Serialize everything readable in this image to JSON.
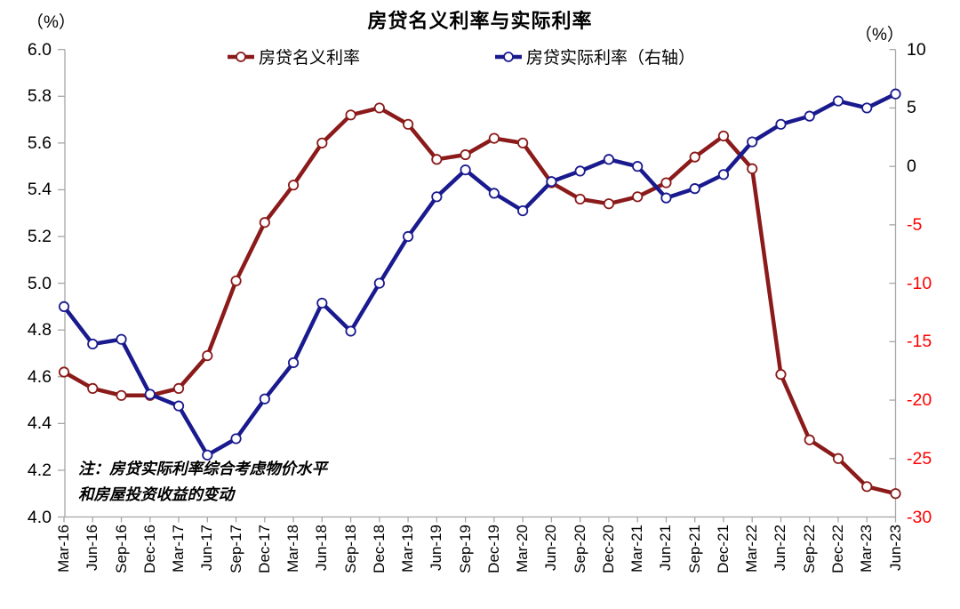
{
  "title": "房贷名义利率与实际利率",
  "left_axis_unit": "（%）",
  "right_axis_unit": "（%）",
  "legend": [
    {
      "label": "房贷名义利率",
      "color": "#8B1A1A"
    },
    {
      "label": "房贷实际利率（右轴）",
      "color": "#1A1A8F"
    }
  ],
  "note": {
    "line1": "注：房贷实际利率综合考虑物价水平",
    "line2": "和房屋投资收益的变动"
  },
  "colors": {
    "nominal_series": "#8B1A1A",
    "real_series": "#1A1A8F",
    "axis": "#A6A6A6",
    "negative_tick": "#FF0000",
    "positive_tick": "#000000"
  },
  "chart_data": {
    "type": "line",
    "title": "房贷名义利率与实际利率",
    "categories": [
      "Mar-16",
      "Jun-16",
      "Sep-16",
      "Dec-16",
      "Mar-17",
      "Jun-17",
      "Sep-17",
      "Dec-17",
      "Mar-18",
      "Jun-18",
      "Sep-18",
      "Dec-18",
      "Mar-19",
      "Jun-19",
      "Sep-19",
      "Dec-19",
      "Mar-20",
      "Jun-20",
      "Sep-20",
      "Dec-20",
      "Mar-21",
      "Jun-21",
      "Sep-21",
      "Dec-21",
      "Mar-22",
      "Jun-22",
      "Sep-22",
      "Dec-22",
      "Mar-23",
      "Jun-23"
    ],
    "series": [
      {
        "name": "房贷名义利率",
        "axis": "left",
        "color": "#8B1A1A",
        "values": [
          4.62,
          4.55,
          4.52,
          4.52,
          4.55,
          4.69,
          5.01,
          5.26,
          5.42,
          5.6,
          5.72,
          5.75,
          5.68,
          5.53,
          5.55,
          5.62,
          5.6,
          5.43,
          5.36,
          5.34,
          5.37,
          5.43,
          5.54,
          5.63,
          5.49,
          4.61,
          4.33,
          4.25,
          4.13,
          4.1
        ]
      },
      {
        "name": "房贷实际利率（右轴）",
        "axis": "right",
        "color": "#1A1A8F",
        "values": [
          -12.0,
          -15.2,
          -14.8,
          -19.5,
          -20.5,
          -24.7,
          -23.3,
          -19.9,
          -16.8,
          -11.7,
          -14.1,
          -10.0,
          -6.0,
          -2.6,
          -0.3,
          -2.3,
          -3.8,
          -1.3,
          -0.4,
          0.6,
          0.0,
          -2.7,
          -1.9,
          -0.7,
          2.1,
          3.6,
          4.3,
          5.6,
          5.0,
          6.2
        ]
      }
    ],
    "left_axis": {
      "min": 4.0,
      "max": 6.0,
      "step": 0.2,
      "tick_labels": [
        "6.0",
        "5.8",
        "5.6",
        "5.4",
        "5.2",
        "5.0",
        "4.8",
        "4.6",
        "4.4",
        "4.2",
        "4.0"
      ]
    },
    "right_axis": {
      "min": -30,
      "max": 10,
      "step": 5,
      "tick_labels": [
        "10",
        "5",
        "0",
        "-5",
        "-10",
        "-15",
        "-20",
        "-25",
        "-30"
      ]
    },
    "grid": false,
    "legend_position": "top"
  }
}
